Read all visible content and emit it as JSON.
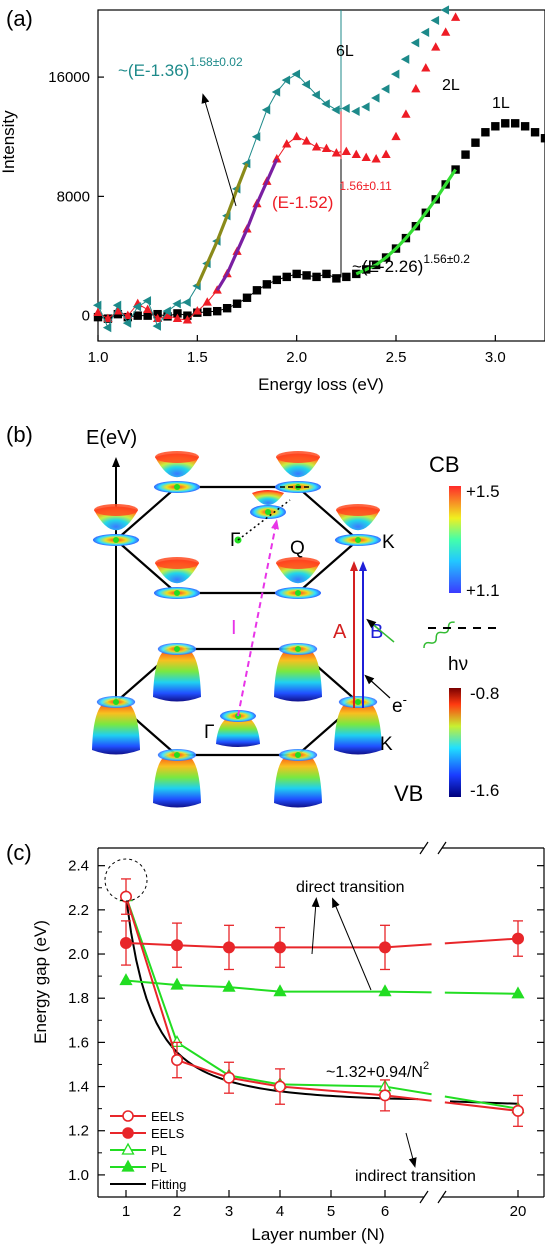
{
  "colors": {
    "series_1L": "#000000",
    "series_2L": "#ee1c25",
    "series_6L": "#1d8a8a",
    "fit_1L": "#33dd33",
    "fit_2L": "#7a1fa2",
    "fit_6L": "#8a8a1a",
    "eels": "#e8262a",
    "pl": "#22dd22",
    "fitting": "#000000",
    "arrow_A": "#d42020",
    "arrow_B": "#1f1fd8",
    "arrow_I": "#e834e8",
    "photon": "#33bb33"
  },
  "panel_a": {
    "label": "(a)",
    "ylabel": "Intensity",
    "xlabel": "Energy loss (eV)",
    "xticks": [
      "1.0",
      "1.5",
      "2.0",
      "2.5",
      "3.0"
    ],
    "yticks": [
      "0",
      "8000",
      "16000"
    ],
    "series_labels": [
      "6L",
      "2L",
      "1L"
    ],
    "fit_6L_base": "~(E-1.36)",
    "fit_6L_exp": "1.58±0.02",
    "fit_2L_base": "(E-1.52)",
    "fit_2L_exp": "1.56±0.11",
    "fit_1L_base": "~(E-2.26)",
    "fit_1L_exp": "1.56±0.2"
  },
  "panel_b": {
    "label": "(b)",
    "axis_label": "E(eV)",
    "gamma_top": "Γ",
    "q": "Q",
    "k_top": "K",
    "gamma_bottom": "Γ",
    "k_bottom": "K",
    "arrow_A": "A",
    "arrow_B": "B",
    "arrow_I": "I",
    "electron": "e",
    "electron_sup": "-",
    "photon": "hν",
    "cb_title": "CB",
    "cb_max": "+1.5",
    "cb_min": "+1.1",
    "vb_max": "-0.8",
    "vb_min": "-1.6",
    "vb_title": "VB"
  },
  "chart_data": [
    {
      "type": "scatter",
      "panel": "(a)",
      "xlabel": "Energy loss (eV)",
      "ylabel": "Intensity",
      "xlim": [
        1.0,
        3.25
      ],
      "ylim": [
        -1700,
        20500
      ],
      "xticks": [
        1.0,
        1.5,
        2.0,
        2.5,
        3.0
      ],
      "yticks": [
        0,
        8000,
        16000
      ],
      "series": [
        {
          "name": "1L",
          "marker": "square",
          "x": [
            1.0,
            1.05,
            1.1,
            1.15,
            1.2,
            1.25,
            1.3,
            1.35,
            1.4,
            1.45,
            1.5,
            1.55,
            1.6,
            1.65,
            1.7,
            1.75,
            1.8,
            1.85,
            1.9,
            1.95,
            2.0,
            2.05,
            2.1,
            2.15,
            2.2,
            2.25,
            2.3,
            2.35,
            2.4,
            2.45,
            2.5,
            2.55,
            2.6,
            2.65,
            2.7,
            2.75,
            2.8,
            2.85,
            2.9,
            2.95,
            3.0,
            3.05,
            3.1,
            3.15,
            3.2,
            3.25
          ],
          "y": [
            -100,
            -200,
            100,
            -100,
            0,
            0,
            100,
            -50,
            150,
            0,
            200,
            250,
            300,
            500,
            800,
            1200,
            1700,
            2100,
            2400,
            2600,
            2800,
            2700,
            2600,
            2800,
            2500,
            2600,
            2800,
            3100,
            3400,
            3900,
            4500,
            5200,
            6000,
            6900,
            7800,
            8800,
            9800,
            10800,
            11600,
            12300,
            12700,
            12900,
            12900,
            12700,
            12300,
            11900
          ]
        },
        {
          "name": "2L",
          "marker": "triangle-up",
          "x": [
            1.0,
            1.05,
            1.1,
            1.15,
            1.2,
            1.25,
            1.3,
            1.35,
            1.4,
            1.45,
            1.5,
            1.55,
            1.6,
            1.65,
            1.7,
            1.75,
            1.8,
            1.85,
            1.9,
            1.95,
            2.0,
            2.05,
            2.1,
            2.15,
            2.2,
            2.25,
            2.3,
            2.35,
            2.4,
            2.45,
            2.5,
            2.55,
            2.6,
            2.65,
            2.7,
            2.75,
            2.8
          ],
          "y": [
            200,
            -200,
            300,
            0,
            800,
            400,
            -200,
            0,
            -200,
            -300,
            300,
            900,
            1700,
            2800,
            4300,
            5800,
            7500,
            9000,
            10500,
            11500,
            12000,
            11700,
            11300,
            11200,
            10900,
            11000,
            10800,
            10600,
            10500,
            10800,
            12000,
            13500,
            15200,
            16600,
            18000,
            19000,
            20000
          ]
        },
        {
          "name": "6L",
          "marker": "triangle-left",
          "x": [
            1.0,
            1.05,
            1.1,
            1.15,
            1.2,
            1.25,
            1.3,
            1.35,
            1.4,
            1.45,
            1.5,
            1.55,
            1.6,
            1.65,
            1.7,
            1.75,
            1.8,
            1.85,
            1.9,
            1.95,
            2.0,
            2.05,
            2.1,
            2.15,
            2.2,
            2.25,
            2.3,
            2.35,
            2.4,
            2.45,
            2.5,
            2.55,
            2.6,
            2.65,
            2.7,
            2.75
          ],
          "y": [
            700,
            -800,
            700,
            -500,
            600,
            1000,
            -700,
            300,
            800,
            900,
            2000,
            3500,
            5000,
            6700,
            8500,
            10200,
            12000,
            13800,
            15000,
            15800,
            16200,
            15500,
            14800,
            14200,
            13800,
            13900,
            13700,
            14000,
            14600,
            15200,
            16200,
            17200,
            18300,
            19000,
            19800,
            20500
          ]
        }
      ],
      "fits": [
        {
          "series": "6L",
          "formula": "~(E-1.36)^1.58±0.02",
          "x_range": [
            1.5,
            1.75
          ]
        },
        {
          "series": "2L",
          "formula": "(E-1.52)^1.56±0.11",
          "x_range": [
            1.6,
            1.9
          ]
        },
        {
          "series": "1L",
          "formula": "~(E-2.26)^1.56±0.2",
          "x_range": [
            2.26,
            2.8
          ]
        }
      ]
    },
    {
      "type": "line",
      "panel": "(c)",
      "xlabel": "Layer number (N)",
      "ylabel": "Energy gap (eV)",
      "x_tick_labels": [
        "1",
        "2",
        "3",
        "4",
        "5",
        "6",
        "20"
      ],
      "ylim": [
        0.9,
        2.4
      ],
      "yticks": [
        1.0,
        1.2,
        1.4,
        1.6,
        1.8,
        2.0,
        2.2,
        2.4
      ],
      "series": [
        {
          "name": "EELS",
          "marker": "open-circle",
          "x": [
            1,
            2,
            3,
            4,
            6,
            20
          ],
          "y": [
            2.26,
            1.52,
            1.44,
            1.4,
            1.36,
            1.29
          ],
          "err": [
            0.08,
            0.08,
            0.07,
            0.08,
            0.07,
            0.07
          ]
        },
        {
          "name": "EELS",
          "marker": "filled-circle",
          "x": [
            1,
            2,
            3,
            4,
            6,
            20
          ],
          "y": [
            2.05,
            2.04,
            2.03,
            2.03,
            2.03,
            2.07
          ],
          "err": [
            0.1,
            0.1,
            0.1,
            0.09,
            0.1,
            0.08
          ]
        },
        {
          "name": "PL",
          "marker": "open-triangle",
          "x": [
            1,
            2,
            3,
            4,
            6,
            20
          ],
          "y": [
            2.26,
            1.6,
            1.45,
            1.41,
            1.4,
            1.3
          ]
        },
        {
          "name": "PL",
          "marker": "filled-triangle",
          "x": [
            1,
            2,
            3,
            4,
            6,
            20
          ],
          "y": [
            1.88,
            1.86,
            1.85,
            1.83,
            1.83,
            1.82
          ]
        },
        {
          "name": "Fitting",
          "marker": "none",
          "x": [
            1,
            1.5,
            2,
            2.5,
            3,
            4,
            5,
            6,
            20
          ],
          "y": [
            2.26,
            1.74,
            1.555,
            1.47,
            1.424,
            1.379,
            1.358,
            1.346,
            1.322
          ]
        }
      ],
      "annotations": [
        "direct  transition",
        "~1.32+0.94/N",
        "indirect  transition"
      ]
    }
  ],
  "panel_c": {
    "label": "(c)",
    "ylabel": "Energy gap (eV)",
    "xlabel": "Layer number (N)",
    "yticks": [
      "1.0",
      "1.2",
      "1.4",
      "1.6",
      "1.8",
      "2.0",
      "2.2",
      "2.4"
    ],
    "xticks": [
      "1",
      "2",
      "3",
      "4",
      "5",
      "6",
      "20"
    ],
    "direct_label": "direct  transition",
    "indirect_label": "indirect  transition",
    "fit_formula": "~1.32+0.94/N",
    "fit_formula_exp": "2",
    "legend": [
      "EELS",
      "EELS",
      "PL",
      "PL",
      "Fitting"
    ]
  }
}
